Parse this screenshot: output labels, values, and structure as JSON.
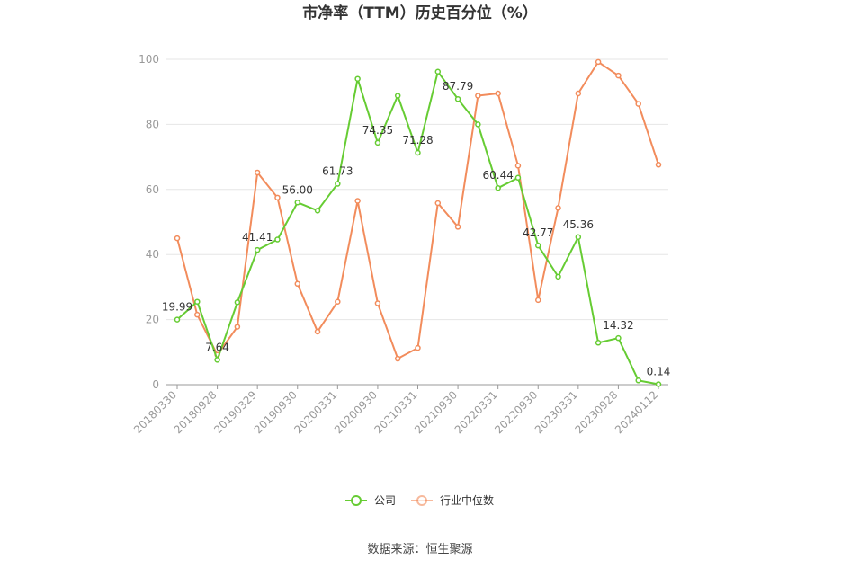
{
  "chart_data": {
    "type": "line",
    "title": "市净率（TTM）历史百分位（%）",
    "ylim": [
      0,
      100
    ],
    "y_ticks": [
      "0",
      "20",
      "40",
      "60",
      "80",
      "100"
    ],
    "x_tick_labels": [
      "20180330",
      "20180928",
      "20190329",
      "20190930",
      "20200331",
      "20200930",
      "20210331",
      "20210930",
      "20220331",
      "20220930",
      "20230331",
      "20230928",
      "20240112"
    ],
    "grid": true,
    "legend_position": "bottom-center",
    "series": [
      {
        "name": "公司",
        "color": "#66cc33",
        "values": [
          19.99,
          25.5,
          7.64,
          25.3,
          41.41,
          44.6,
          56.0,
          53.5,
          61.73,
          94.0,
          74.35,
          88.8,
          71.28,
          96.2,
          87.79,
          80.0,
          60.44,
          63.6,
          42.77,
          33.2,
          45.36,
          12.9,
          14.32,
          1.3,
          0.14
        ],
        "labels": {
          "0": "19.99",
          "2": "7.64",
          "4": "41.41",
          "6": "56.00",
          "8": "61.73",
          "10": "74.35",
          "12": "71.28",
          "14": "87.79",
          "16": "60.44",
          "18": "42.77",
          "20": "45.36",
          "22": "14.32",
          "24": "0.14"
        }
      },
      {
        "name": "行业中位数",
        "color": "#f28c5c",
        "values": [
          45.0,
          21.5,
          9.2,
          17.8,
          65.2,
          57.5,
          31.0,
          16.3,
          25.5,
          56.5,
          25.0,
          8.0,
          11.3,
          55.8,
          48.5,
          88.8,
          89.5,
          67.3,
          26.0,
          54.3,
          89.5,
          99.2,
          95.0,
          86.3,
          67.6
        ]
      }
    ],
    "source": "数据来源：恒生聚源"
  }
}
